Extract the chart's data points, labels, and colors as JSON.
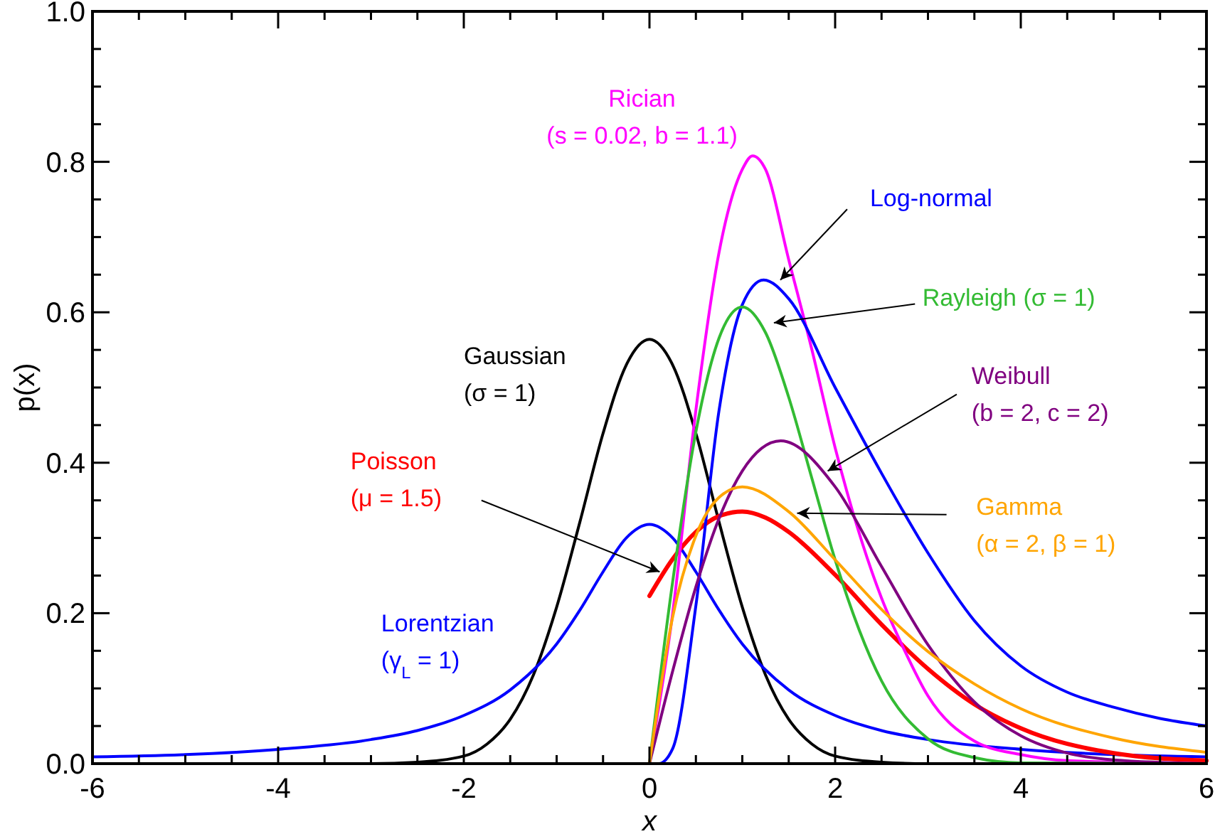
{
  "chart_data": {
    "type": "line",
    "xlabel": "x",
    "ylabel": "p(x)",
    "xlim": [
      -6,
      6
    ],
    "ylim": [
      0,
      1
    ],
    "xticks": [
      -6,
      {
        "value": -5.5,
        "label": null
      },
      {
        "value": -5,
        "label": null
      },
      {
        "value": -4.5,
        "label": null
      },
      -4,
      {
        "value": -3.5,
        "label": null
      },
      {
        "value": -3,
        "label": null
      },
      {
        "value": -2.5,
        "label": null
      },
      -2,
      {
        "value": -1.5,
        "label": null
      },
      {
        "value": -1,
        "label": null
      },
      {
        "value": -0.5,
        "label": null
      },
      0,
      {
        "value": 0.5,
        "label": null
      },
      {
        "value": 1,
        "label": null
      },
      {
        "value": 1.5,
        "label": null
      },
      2,
      {
        "value": 2.5,
        "label": null
      },
      {
        "value": 3,
        "label": null
      },
      {
        "value": 3.5,
        "label": null
      },
      4,
      {
        "value": 4.5,
        "label": null
      },
      {
        "value": 5,
        "label": null
      },
      {
        "value": 5.5,
        "label": null
      },
      6
    ],
    "yticks": [
      {
        "value": 0,
        "label": "0.0"
      },
      {
        "value": 0.05,
        "label": null
      },
      {
        "value": 0.1,
        "label": null
      },
      {
        "value": 0.15,
        "label": null
      },
      {
        "value": 0.2,
        "label": "0.2"
      },
      {
        "value": 0.25,
        "label": null
      },
      {
        "value": 0.3,
        "label": null
      },
      {
        "value": 0.35,
        "label": null
      },
      {
        "value": 0.4,
        "label": "0.4"
      },
      {
        "value": 0.45,
        "label": null
      },
      {
        "value": 0.5,
        "label": null
      },
      {
        "value": 0.55,
        "label": null
      },
      {
        "value": 0.6,
        "label": "0.6"
      },
      {
        "value": 0.65,
        "label": null
      },
      {
        "value": 0.7,
        "label": null
      },
      {
        "value": 0.75,
        "label": null
      },
      {
        "value": 0.8,
        "label": "0.8"
      },
      {
        "value": 0.85,
        "label": null
      },
      {
        "value": 0.9,
        "label": null
      },
      {
        "value": 0.95,
        "label": null
      },
      {
        "value": 1,
        "label": "1.0"
      }
    ],
    "series": [
      {
        "name": "Gaussian (σ = 1)",
        "color": "#000000",
        "x": [
          -6,
          -3,
          -2.5,
          -2,
          -1.75,
          -1.5,
          -1.25,
          -1,
          -0.75,
          -0.5,
          -0.25,
          0,
          0.25,
          0.5,
          0.75,
          1,
          1.25,
          1.5,
          1.75,
          2,
          2.5,
          3,
          6
        ],
        "values": [
          0,
          0,
          0.002,
          0.01,
          0.026,
          0.059,
          0.118,
          0.208,
          0.321,
          0.439,
          0.53,
          0.564,
          0.53,
          0.439,
          0.321,
          0.208,
          0.118,
          0.059,
          0.026,
          0.01,
          0.002,
          0,
          0
        ]
      },
      {
        "name": "Lorentzian (γ$_{L}$ = 1)",
        "color": "#0000ff",
        "x": [
          -6,
          -5,
          -4,
          -3,
          -2.5,
          -2,
          -1.5,
          -1,
          -0.75,
          -0.5,
          -0.25,
          0,
          0.25,
          0.5,
          0.75,
          1,
          1.5,
          2,
          2.5,
          3,
          4,
          5,
          6
        ],
        "values": [
          0.009,
          0.012,
          0.019,
          0.032,
          0.044,
          0.064,
          0.098,
          0.159,
          0.204,
          0.255,
          0.3,
          0.318,
          0.3,
          0.255,
          0.204,
          0.159,
          0.098,
          0.064,
          0.044,
          0.032,
          0.019,
          0.012,
          0.009
        ]
      },
      {
        "name": "Poisson (μ = 1.5)",
        "color": "#ff0000",
        "x": [
          0,
          0.25,
          0.5,
          0.75,
          1,
          1.25,
          1.5,
          2,
          2.5,
          3,
          3.5,
          4,
          5,
          6
        ],
        "values": [
          0.223,
          0.272,
          0.308,
          0.329,
          0.335,
          0.327,
          0.308,
          0.251,
          0.185,
          0.126,
          0.079,
          0.047,
          0.014,
          0.004
        ]
      },
      {
        "name": "Rician (s = 0.02, b = 1.1)",
        "color": "#ff00ff",
        "x": [
          0,
          0.25,
          0.5,
          0.75,
          1,
          1.11,
          1.25,
          1.5,
          1.75,
          2,
          2.25,
          2.5,
          2.75,
          3,
          3.5,
          4,
          4.5,
          6
        ],
        "values": [
          0,
          0.2,
          0.47,
          0.68,
          0.79,
          0.808,
          0.79,
          0.67,
          0.55,
          0.42,
          0.31,
          0.22,
          0.15,
          0.09,
          0.03,
          0.012,
          0.004,
          0
        ]
      },
      {
        "name": "Log-normal",
        "color": "#0000ff",
        "x": [
          0,
          0.1,
          0.25,
          0.5,
          0.75,
          1,
          1.23,
          1.5,
          2,
          2.5,
          3,
          3.5,
          4,
          4.5,
          5,
          5.5,
          6
        ],
        "values": [
          0,
          0,
          0.02,
          0.21,
          0.47,
          0.61,
          0.643,
          0.618,
          0.5,
          0.386,
          0.28,
          0.19,
          0.13,
          0.095,
          0.075,
          0.06,
          0.05
        ]
      },
      {
        "name": "Rayleigh (σ = 1)",
        "color": "#33bb33",
        "x": [
          0,
          0.25,
          0.5,
          0.75,
          1,
          1.25,
          1.5,
          1.75,
          2,
          2.5,
          3,
          3.5,
          4,
          6
        ],
        "values": [
          0,
          0.242,
          0.441,
          0.566,
          0.607,
          0.573,
          0.487,
          0.379,
          0.271,
          0.11,
          0.033,
          0.008,
          0.001,
          0
        ]
      },
      {
        "name": "Weibull (b = 2, c = 2)",
        "color": "#800080",
        "x": [
          0,
          0.25,
          0.5,
          0.75,
          1,
          1.414,
          2,
          2.5,
          3,
          3.5,
          4,
          4.5,
          5,
          6
        ],
        "values": [
          0,
          0.123,
          0.235,
          0.326,
          0.389,
          0.429,
          0.368,
          0.262,
          0.158,
          0.082,
          0.037,
          0.014,
          0.005,
          0
        ]
      },
      {
        "name": "Gamma (α = 2, β = 1)",
        "color": "#ffa500",
        "x": [
          0,
          0.25,
          0.5,
          0.75,
          1,
          1.5,
          2,
          2.5,
          3,
          3.5,
          4,
          5,
          6
        ],
        "values": [
          0,
          0.195,
          0.303,
          0.354,
          0.368,
          0.335,
          0.271,
          0.205,
          0.149,
          0.106,
          0.073,
          0.034,
          0.015
        ]
      }
    ]
  }
}
